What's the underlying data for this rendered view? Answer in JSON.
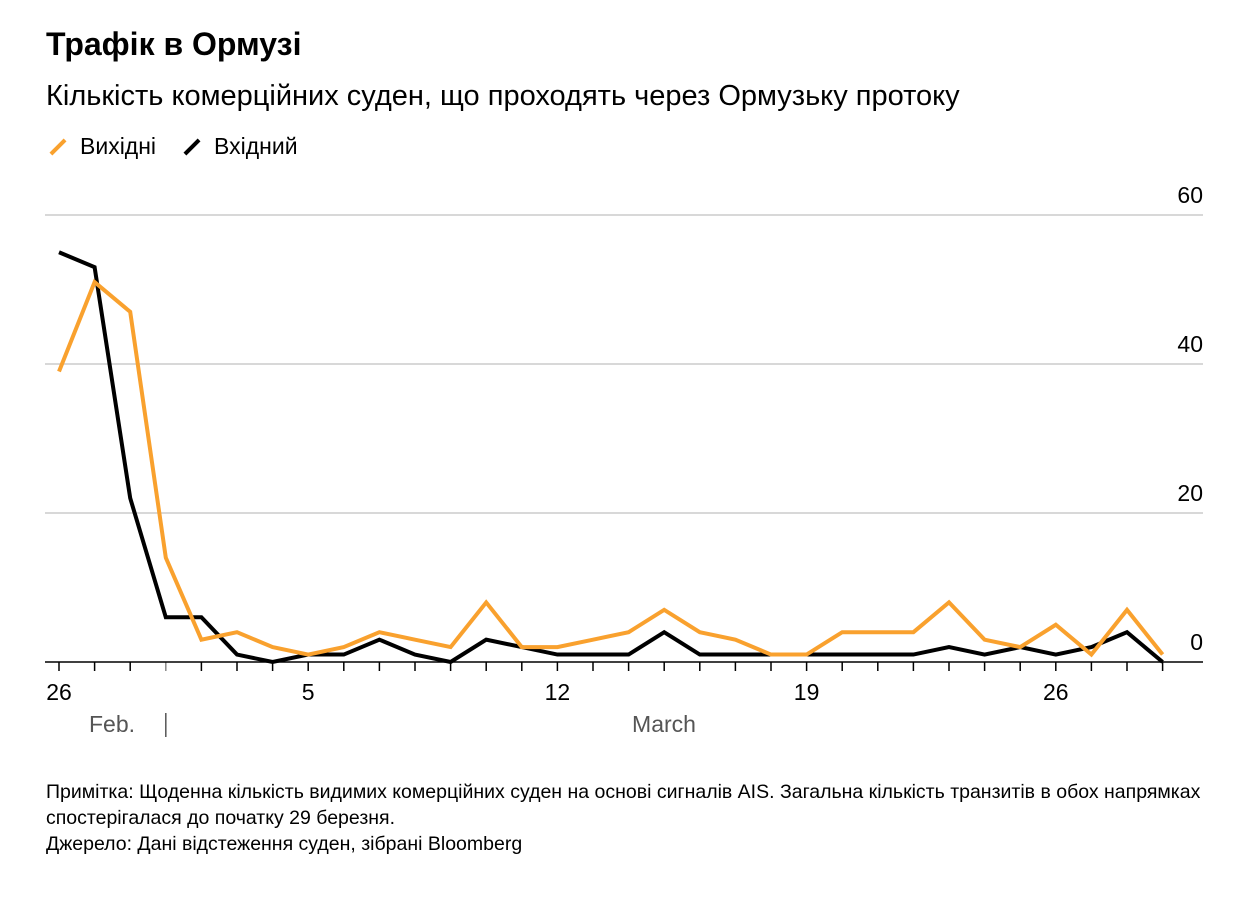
{
  "title": "Трафік в Ормузі",
  "subtitle": "Кількість комерційних суден, що проходять через Ормузьку протоку",
  "note": "Примітка: Щоденна кількість видимих комерційних суден на основі сигналів AIS. Загальна кількість транзитів в обох напрямках спостерігалася до початку 29 березня.",
  "source": "Джерело: Дані відстеження суден, зібрані Bloomberg",
  "chart_data": {
    "type": "line",
    "title": "Трафік в Ормузі",
    "x_start": "2026-02-26",
    "x": [
      "Feb 26",
      "Feb 27",
      "Feb 28",
      "Mar 1",
      "Mar 2",
      "Mar 3",
      "Mar 4",
      "Mar 5",
      "Mar 6",
      "Mar 7",
      "Mar 8",
      "Mar 9",
      "Mar 10",
      "Mar 11",
      "Mar 12",
      "Mar 13",
      "Mar 14",
      "Mar 15",
      "Mar 16",
      "Mar 17",
      "Mar 18",
      "Mar 19",
      "Mar 20",
      "Mar 21",
      "Mar 22",
      "Mar 23",
      "Mar 24",
      "Mar 25",
      "Mar 26",
      "Mar 27",
      "Mar 28",
      "Mar 29"
    ],
    "series": [
      {
        "name": "Вихідні",
        "color": "#f9a12e",
        "values": [
          39,
          51,
          47,
          14,
          3,
          4,
          2,
          1,
          2,
          4,
          3,
          2,
          8,
          2,
          2,
          3,
          4,
          7,
          4,
          3,
          1,
          1,
          4,
          4,
          4,
          8,
          3,
          2,
          5,
          1,
          7,
          1
        ]
      },
      {
        "name": "Вхідний",
        "color": "#000000",
        "values": [
          55,
          53,
          22,
          6,
          6,
          1,
          0,
          1,
          1,
          3,
          1,
          0,
          3,
          2,
          1,
          1,
          1,
          4,
          1,
          1,
          1,
          1,
          1,
          1,
          1,
          2,
          1,
          2,
          1,
          2,
          4,
          0
        ]
      }
    ],
    "ylim": [
      0,
      60
    ],
    "yticks": [
      "0",
      "20",
      "40",
      "60"
    ],
    "xtick_labels": [
      {
        "index": 0,
        "label": "26"
      },
      {
        "index": 7,
        "label": "5"
      },
      {
        "index": 14,
        "label": "12"
      },
      {
        "index": 21,
        "label": "19"
      },
      {
        "index": 28,
        "label": "26"
      }
    ],
    "month_labels": [
      "Feb.",
      "March"
    ],
    "grid": true,
    "legend_position": "top-left",
    "y_axis_side": "right"
  }
}
